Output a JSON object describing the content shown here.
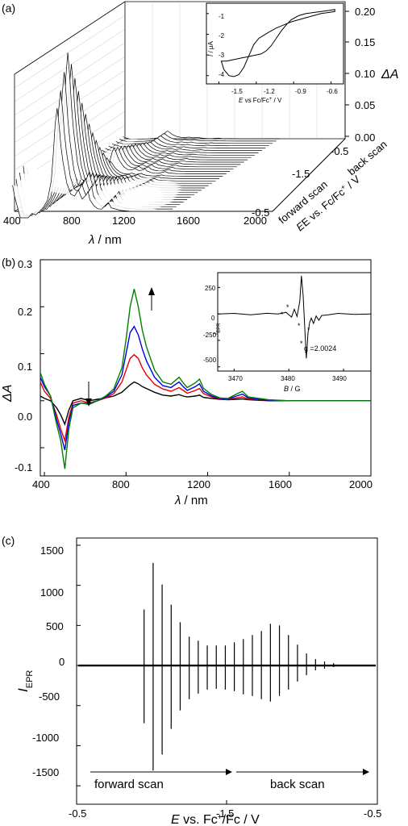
{
  "chart_data": [
    {
      "panel": "(a)",
      "type": "line",
      "view": "3d-waterfall",
      "xlabel_symbol": "λ",
      "xlabel_unit": " / nm",
      "x_ticks": [
        400,
        800,
        1200,
        1600,
        2000
      ],
      "xlim": [
        400,
        2000
      ],
      "zlabel": "ΔA",
      "z_ticks": [
        "0.20",
        "0.15",
        "0.10",
        "0.05",
        "0.00"
      ],
      "zlim": [
        0,
        0.22
      ],
      "ylabel": "E vs. Fc/Fc",
      "ylabel_sup": "+",
      "ylabel_unit": " / V",
      "y_ticks": [
        "-0.5",
        "-1.5",
        "-0.5"
      ],
      "scan_labels": [
        "forward scan",
        "back scan"
      ],
      "inset": {
        "type": "line",
        "ylabel_italic": "I",
        "ylabel_unit": " / μA",
        "y_ticks": [
          "-1",
          "-2",
          "-3",
          "-4"
        ],
        "ylim": [
          -4.4,
          -0.5
        ],
        "xlabel_italic": "E",
        "xlabel_rest": " vs Fc/Fc",
        "xlabel_sup": "+",
        "xlabel_unit": " / V",
        "x_ticks": [
          "-1.5",
          "-1.2",
          "-0.9",
          "-0.6"
        ],
        "xlim": [
          -1.6,
          -0.5
        ],
        "cv": {
          "x": [
            -1.48,
            -1.46,
            -1.42,
            -1.38,
            -1.34,
            -1.3,
            -1.26,
            -1.22,
            -1.18,
            -1.14,
            -1.1,
            -1.04,
            -0.98,
            -0.92,
            -0.86,
            -0.8,
            -0.74,
            -0.68,
            -0.62,
            -0.57,
            -0.57,
            -0.62,
            -0.68,
            -0.74,
            -0.8,
            -0.86,
            -0.92,
            -0.96,
            -1.0,
            -1.04,
            -1.08,
            -1.12,
            -1.16,
            -1.2,
            -1.24,
            -1.28,
            -1.32,
            -1.36,
            -1.4,
            -1.44,
            -1.48
          ],
          "y": [
            -3.3,
            -3.7,
            -4.0,
            -4.05,
            -3.95,
            -3.6,
            -3.05,
            -2.5,
            -2.2,
            -2.05,
            -1.9,
            -1.7,
            -1.55,
            -1.4,
            -1.3,
            -1.2,
            -1.1,
            -1.0,
            -0.95,
            -0.9,
            -0.8,
            -0.85,
            -0.9,
            -0.95,
            -1.0,
            -1.1,
            -1.3,
            -1.55,
            -1.85,
            -2.2,
            -2.55,
            -2.8,
            -2.95,
            -3.0,
            -3.05,
            -3.1,
            -3.15,
            -3.2,
            -3.25,
            -3.3,
            -3.3
          ]
        }
      }
    },
    {
      "panel": "(b)",
      "type": "line",
      "xlabel_symbol": "λ",
      "xlabel_unit": " / nm",
      "ylabel": "ΔA",
      "x_ticks": [
        "400",
        "800",
        "1200",
        "1600",
        "2000"
      ],
      "xlim": [
        380,
        2000
      ],
      "y_ticks": [
        "0.3",
        "0.2",
        "0.1",
        "0.0",
        "-0.1"
      ],
      "ylim": [
        -0.16,
        0.3
      ],
      "x": [
        380,
        400,
        430,
        460,
        480,
        500,
        520,
        540,
        580,
        620,
        660,
        700,
        740,
        780,
        800,
        820,
        840,
        860,
        880,
        900,
        940,
        980,
        1020,
        1060,
        1080,
        1100,
        1140,
        1160,
        1180,
        1220,
        1260,
        1300,
        1340,
        1370,
        1400,
        1500,
        1600,
        1800,
        2000
      ],
      "series": [
        {
          "color": "#000000",
          "values": [
            0.01,
            0.005,
            0.0,
            -0.015,
            -0.03,
            -0.05,
            -0.02,
            0.0,
            0.005,
            0.0,
            0.003,
            0.006,
            0.01,
            0.018,
            0.026,
            0.034,
            0.04,
            0.036,
            0.03,
            0.026,
            0.018,
            0.012,
            0.01,
            0.013,
            0.01,
            0.008,
            0.01,
            0.012,
            0.007,
            0.005,
            0.003,
            0.002,
            0.003,
            0.004,
            0.002,
            0.0,
            0.0,
            0.0,
            0.0
          ]
        },
        {
          "color": "#e60000",
          "values": [
            0.04,
            0.02,
            0.005,
            -0.03,
            -0.06,
            -0.085,
            -0.035,
            -0.005,
            0.0,
            -0.005,
            0.0,
            0.006,
            0.015,
            0.04,
            0.065,
            0.09,
            0.098,
            0.09,
            0.07,
            0.055,
            0.035,
            0.025,
            0.02,
            0.028,
            0.022,
            0.016,
            0.022,
            0.026,
            0.015,
            0.008,
            0.004,
            0.003,
            0.006,
            0.008,
            0.004,
            0.001,
            0.0,
            0.0,
            0.0
          ]
        },
        {
          "color": "#0000e6",
          "values": [
            0.05,
            0.03,
            0.01,
            -0.04,
            -0.07,
            -0.105,
            -0.045,
            -0.01,
            -0.005,
            -0.006,
            0.0,
            0.008,
            0.02,
            0.055,
            0.1,
            0.145,
            0.158,
            0.14,
            0.11,
            0.085,
            0.05,
            0.032,
            0.028,
            0.04,
            0.03,
            0.022,
            0.03,
            0.036,
            0.02,
            0.01,
            0.005,
            0.004,
            0.01,
            0.014,
            0.006,
            0.001,
            0.0,
            0.0,
            0.0
          ]
        },
        {
          "color": "#008000",
          "values": [
            0.06,
            0.035,
            0.01,
            -0.05,
            -0.085,
            -0.145,
            -0.06,
            -0.015,
            -0.005,
            -0.008,
            0.0,
            0.01,
            0.025,
            0.07,
            0.13,
            0.2,
            0.238,
            0.2,
            0.15,
            0.115,
            0.065,
            0.04,
            0.035,
            0.05,
            0.038,
            0.028,
            0.038,
            0.046,
            0.026,
            0.013,
            0.006,
            0.005,
            0.014,
            0.02,
            0.008,
            0.002,
            0.0,
            0.0,
            0.0
          ]
        }
      ],
      "inset": {
        "type": "line",
        "ylabel_italic": "I",
        "ylabel_sub": "EPR",
        "xlabel_italic": "B",
        "xlabel_unit": " / G",
        "y_ticks": [
          "250",
          "0",
          "-250",
          "-500"
        ],
        "ylim": [
          -540,
          390
        ],
        "x_ticks": [
          "3470",
          "3480",
          "3490"
        ],
        "xlim": [
          3467,
          3495
        ],
        "g_label": "g =2.0024",
        "asterisks": [
          "*",
          "*",
          "*",
          "*",
          "*"
        ],
        "spectrum": {
          "x": [
            3467,
            3470,
            3473,
            3476,
            3478,
            3479.5,
            3480.5,
            3481,
            3481.5,
            3482,
            3482.3,
            3482.6,
            3482.9,
            3483.2,
            3483.5,
            3483.8,
            3484.1,
            3484.5,
            3485,
            3485.5,
            3486,
            3487,
            3489,
            3492,
            3495
          ],
          "y": [
            0,
            5,
            -8,
            6,
            0,
            15,
            -30,
            45,
            -25,
            120,
            360,
            180,
            -120,
            -420,
            -180,
            -80,
            -40,
            -90,
            -20,
            -60,
            -15,
            -10,
            5,
            -5,
            0
          ]
        }
      }
    },
    {
      "panel": "(c)",
      "type": "bar",
      "ylabel_italic": "I",
      "ylabel_sub": "EPR",
      "xlabel_rest": " vs. Fc",
      "xlabel_italic": "E",
      "xlabel_sup": "+",
      "xlabel_unit": "/Fc / V",
      "x_ticks": [
        "-0.5",
        "-1.5",
        "-0.5"
      ],
      "y_ticks": [
        "1500",
        "1000",
        "500",
        "0",
        "-500",
        "-1000",
        "-1500"
      ],
      "ylim": [
        -1500,
        1500
      ],
      "scan_labels": [
        "forward scan",
        "back scan"
      ],
      "x_scan": [
        0.27,
        0.3,
        0.33,
        0.36,
        0.39,
        0.42,
        0.45,
        0.48,
        0.51,
        0.54,
        0.57,
        0.6,
        0.63,
        0.66,
        0.69,
        0.72,
        0.75,
        0.78,
        0.81,
        0.84,
        0.87,
        0.9
      ],
      "peak_up": [
        700,
        1280,
        1010,
        760,
        540,
        360,
        310,
        250,
        250,
        250,
        290,
        330,
        380,
        430,
        520,
        500,
        380,
        260,
        150,
        80,
        50,
        30
      ],
      "peak_down": [
        -720,
        -1310,
        -1110,
        -790,
        -560,
        -420,
        -350,
        -300,
        -290,
        -300,
        -320,
        -360,
        -380,
        -420,
        -450,
        -380,
        -300,
        -200,
        -120,
        -60,
        -40,
        -20
      ]
    }
  ],
  "panel_labels": [
    "(a)",
    "(b)",
    "(c)"
  ]
}
